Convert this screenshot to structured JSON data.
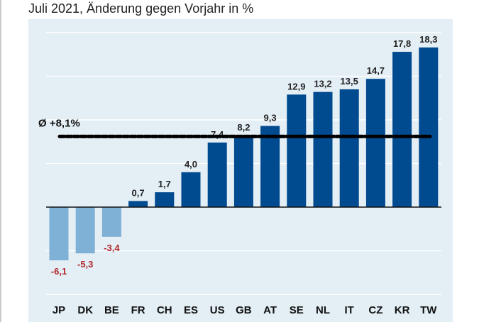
{
  "chart_data": {
    "type": "bar",
    "title": "Juli 2021, Änderung gegen Vorjahr in %",
    "categories": [
      "JP",
      "DK",
      "BE",
      "FR",
      "CH",
      "ES",
      "US",
      "GB",
      "AT",
      "SE",
      "NL",
      "IT",
      "CZ",
      "KR",
      "TW"
    ],
    "values": [
      -6.1,
      -5.3,
      -3.4,
      0.7,
      1.7,
      4.0,
      7.4,
      8.2,
      9.3,
      12.9,
      13.2,
      13.5,
      14.7,
      17.8,
      18.3
    ],
    "data_labels": [
      "-6,1",
      "-5,3",
      "-3,4",
      "0,7",
      "1,7",
      "4,0",
      "7,4",
      "8,2",
      "9,3",
      "12,9",
      "13,2",
      "13,5",
      "14,7",
      "17,8",
      "18,3"
    ],
    "average": {
      "value": 8.1,
      "label": "Ø +8,1%"
    },
    "ylim": [
      -12,
      21
    ],
    "gridlines": [
      -10,
      -5,
      5,
      10,
      15,
      20
    ],
    "grid": true,
    "colors": {
      "positive": "#004a8f",
      "negative": "#7fb0d6",
      "negative_label": "#b3282d",
      "background": "#e3eef5",
      "grid": "#ffffff"
    }
  }
}
